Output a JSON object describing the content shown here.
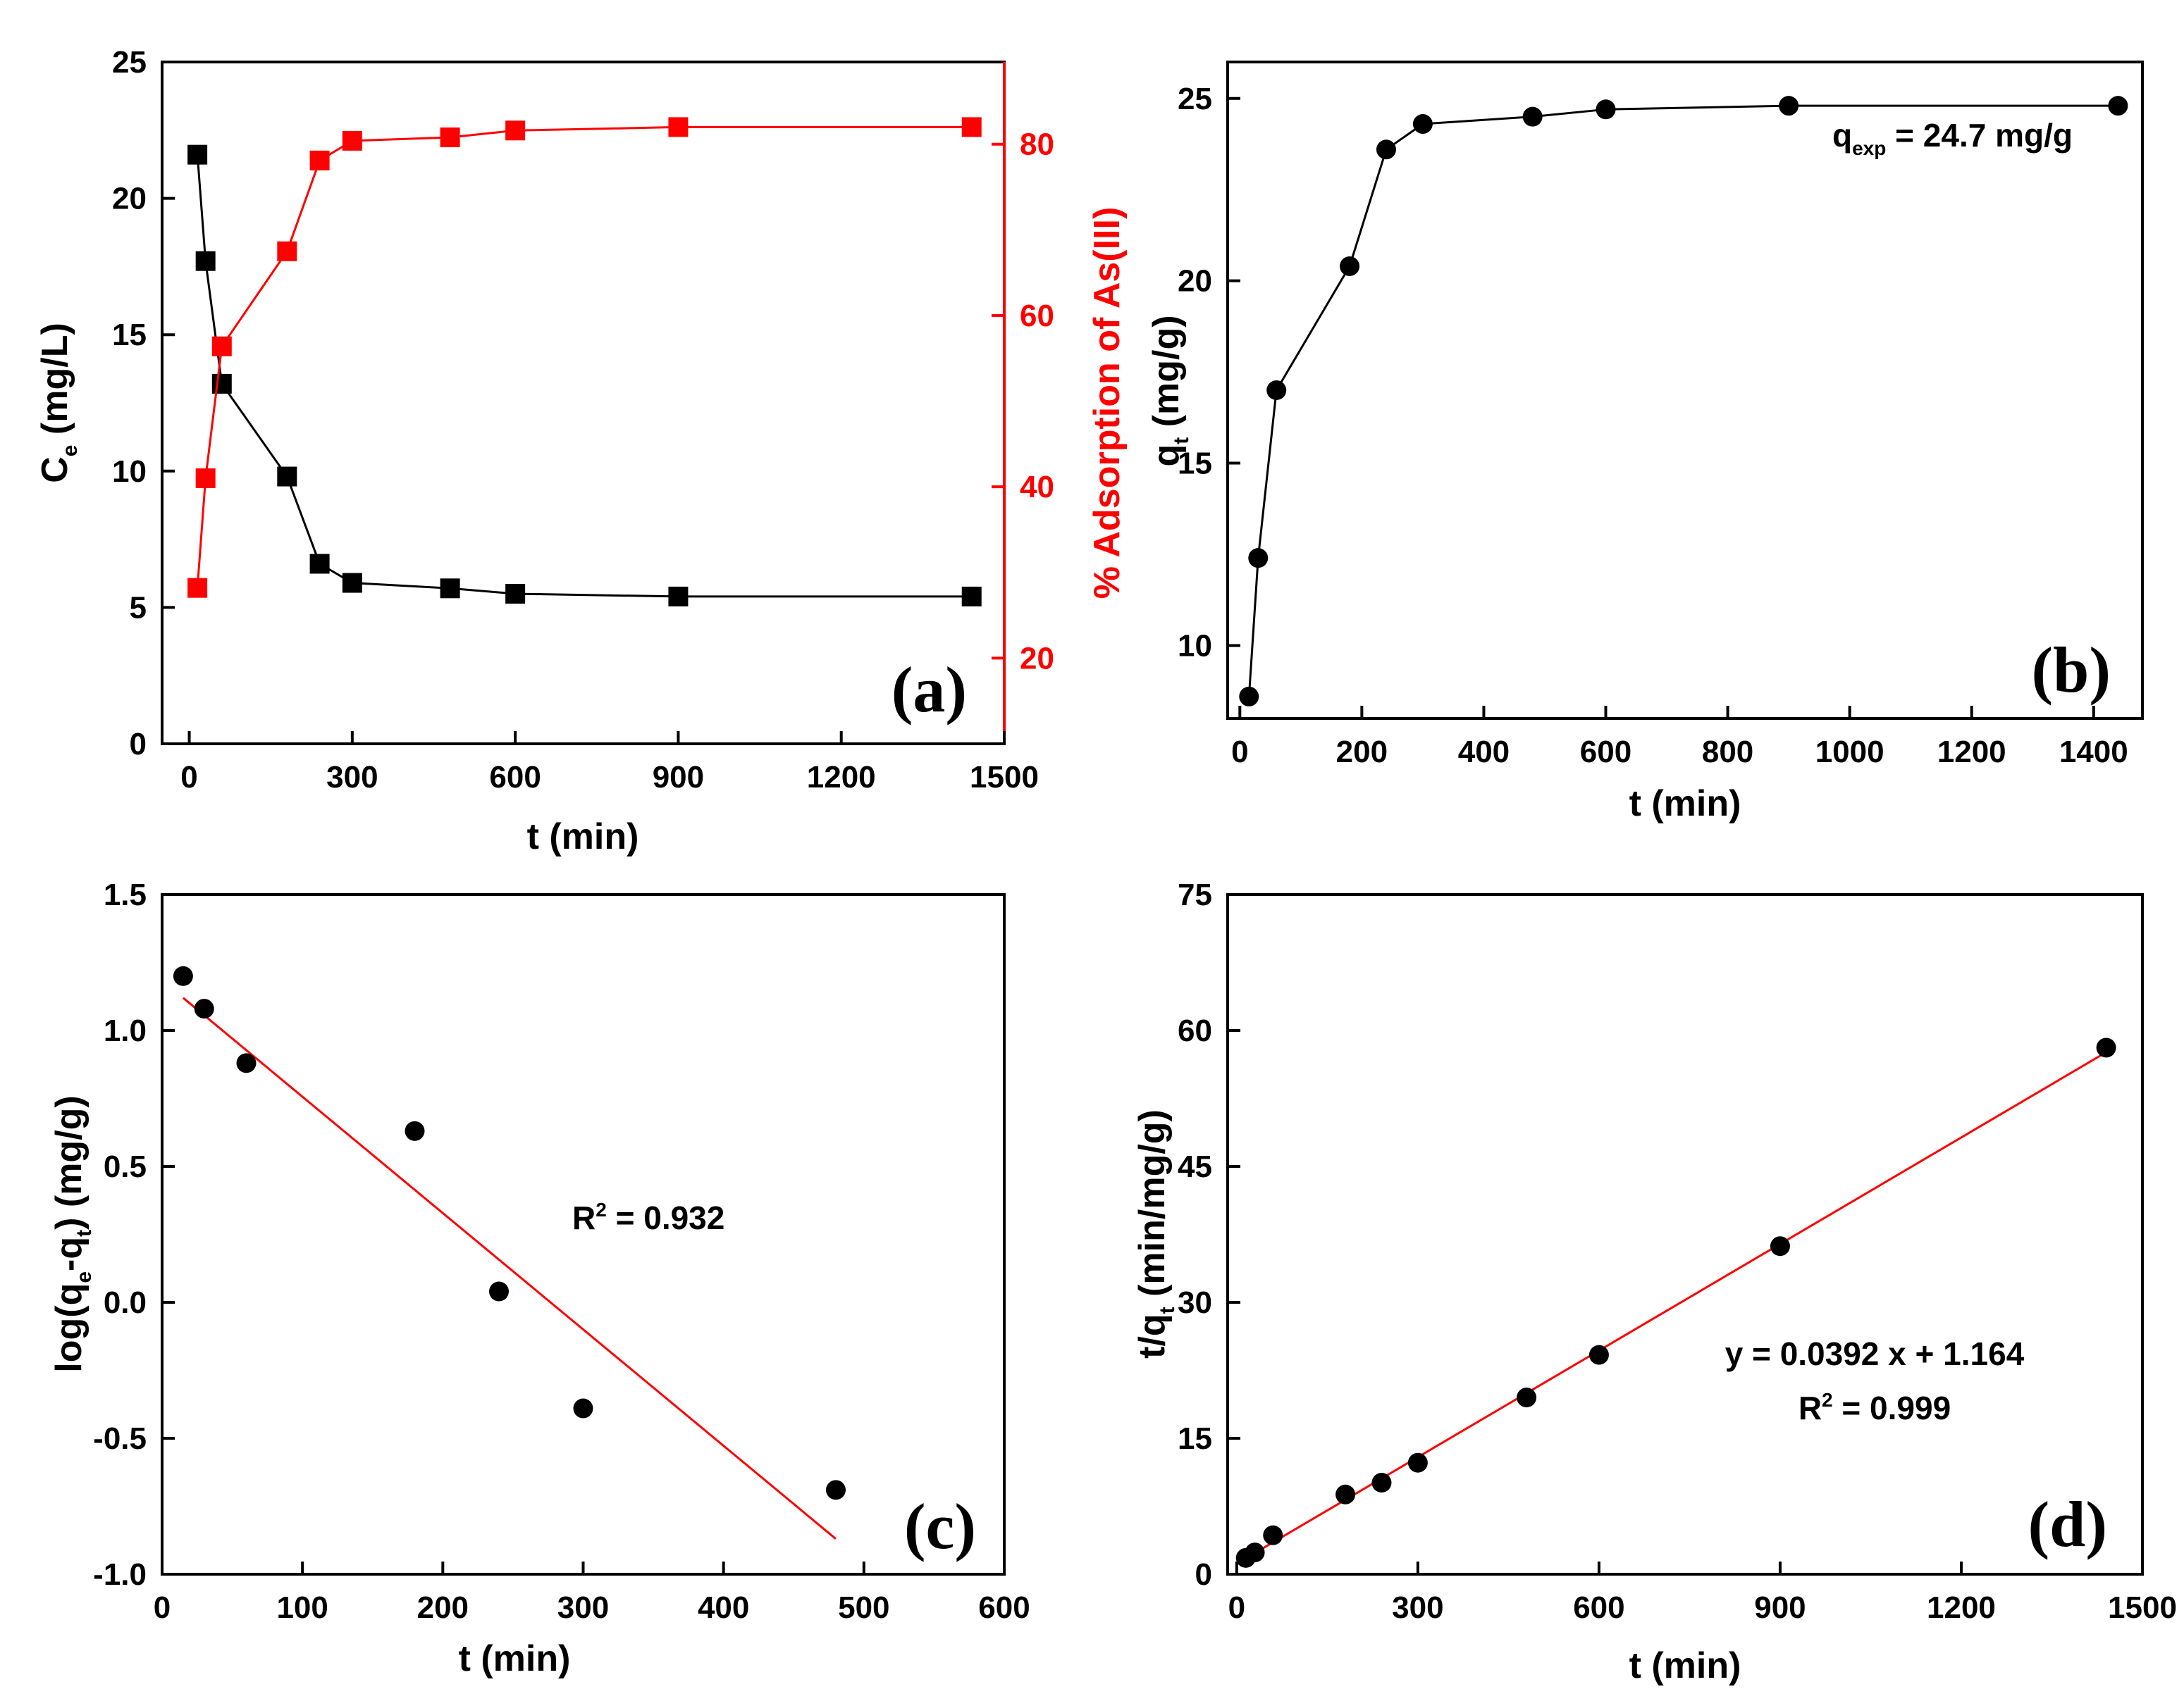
{
  "chart_data": [
    {
      "id": "a",
      "type": "line",
      "panel_label": "(a)",
      "xlabel": "t (min)",
      "ylabel": "C",
      "ylabel_sub": "e",
      "ylabel_rest": " (mg/L)",
      "y2label": "% Adsorption of As(III)",
      "xlim": [
        -50,
        1500
      ],
      "ylim": [
        0,
        25
      ],
      "y2lim": [
        10,
        89.6
      ],
      "xticks": [
        0,
        300,
        600,
        900,
        1200,
        1500
      ],
      "yticks": [
        0,
        5,
        10,
        15,
        20,
        25
      ],
      "y2ticks": [
        20,
        40,
        60,
        80
      ],
      "series": [
        {
          "name": "Ce",
          "axis": "left",
          "color": "#000000",
          "marker": "square",
          "x": [
            15,
            30,
            60,
            180,
            240,
            300,
            480,
            600,
            900,
            1440
          ],
          "y": [
            21.6,
            17.7,
            13.2,
            9.8,
            6.6,
            5.9,
            5.7,
            5.5,
            5.4,
            5.4
          ]
        },
        {
          "name": "% Adsorption",
          "axis": "right",
          "color": "#ff0000",
          "marker": "square",
          "x": [
            15,
            30,
            60,
            180,
            240,
            300,
            480,
            600,
            900,
            1440
          ],
          "y": [
            28.2,
            41.0,
            56.4,
            67.5,
            78.1,
            80.4,
            80.8,
            81.6,
            82.0,
            82.0
          ]
        }
      ]
    },
    {
      "id": "b",
      "type": "line",
      "panel_label": "(b)",
      "xlabel": "t (min)",
      "ylabel": "q",
      "ylabel_sub": "t",
      "ylabel_rest": " (mg/g)",
      "xlim": [
        -20,
        1480
      ],
      "ylim": [
        8,
        26
      ],
      "xticks": [
        0,
        200,
        400,
        600,
        800,
        1000,
        1200,
        1400
      ],
      "yticks": [
        10,
        15,
        20,
        25
      ],
      "annotation": {
        "text": "q",
        "sub": "exp",
        "rest": " = 24.7 mg/g"
      },
      "series": [
        {
          "name": "qt",
          "color": "#000000",
          "marker": "circle",
          "x": [
            15,
            30,
            60,
            180,
            240,
            300,
            480,
            600,
            900,
            1440
          ],
          "y": [
            8.6,
            12.4,
            17.0,
            20.4,
            23.6,
            24.3,
            24.5,
            24.7,
            24.8,
            24.8
          ]
        }
      ]
    },
    {
      "id": "c",
      "type": "scatter",
      "panel_label": "(c)",
      "xlabel": "t (min)",
      "ylabel": "log(q",
      "ylabel_sub1": "e",
      "ylabel_mid": "-q",
      "ylabel_sub2": "t",
      "ylabel_rest": ") (mg/g)",
      "xlim": [
        0,
        600
      ],
      "ylim": [
        -1.0,
        1.5
      ],
      "xticks": [
        0,
        100,
        200,
        300,
        400,
        500,
        600
      ],
      "yticks": [
        -1.0,
        -0.5,
        0.0,
        0.5,
        1.0,
        1.5
      ],
      "annotation": {
        "text": "R",
        "sup": "2",
        "rest": " = 0.932"
      },
      "fit": {
        "x": [
          15,
          480
        ],
        "y": [
          1.12,
          -0.87
        ],
        "color": "#ff0000"
      },
      "series": [
        {
          "name": "log(qe-qt)",
          "color": "#000000",
          "marker": "circle",
          "x": [
            15,
            30,
            60,
            180,
            240,
            300,
            480
          ],
          "y": [
            1.2,
            1.08,
            0.88,
            0.63,
            0.04,
            -0.39,
            -0.69
          ]
        }
      ]
    },
    {
      "id": "d",
      "type": "scatter",
      "panel_label": "(d)",
      "xlabel": "t (min)",
      "ylabel": "t/q",
      "ylabel_sub": "t",
      "ylabel_rest": " (min/mg/g)",
      "xlim": [
        -15,
        1500
      ],
      "ylim": [
        0,
        75
      ],
      "xticks": [
        0,
        300,
        600,
        900,
        1200,
        1500
      ],
      "yticks": [
        0,
        15,
        30,
        45,
        60,
        75
      ],
      "annotation1": "y = 0.0392 x + 1.164",
      "annotation2": {
        "text": "R",
        "sup": "2",
        "rest": " = 0.999"
      },
      "fit": {
        "x": [
          15,
          1440
        ],
        "y": [
          1.75,
          57.6
        ],
        "color": "#ff0000"
      },
      "series": [
        {
          "name": "t/qt",
          "color": "#000000",
          "marker": "circle",
          "x": [
            15,
            30,
            60,
            180,
            240,
            300,
            480,
            600,
            900,
            1440
          ],
          "y": [
            1.8,
            2.4,
            4.3,
            8.8,
            10.1,
            12.3,
            19.5,
            24.2,
            36.2,
            58.1
          ]
        }
      ]
    }
  ]
}
